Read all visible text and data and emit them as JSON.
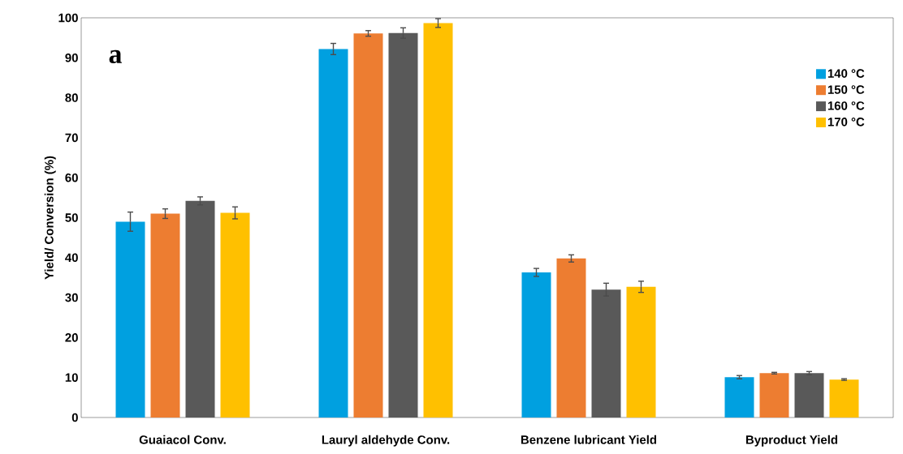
{
  "chart_data": {
    "type": "bar",
    "ylabel": "Yield/ Conversion (%)",
    "categories": [
      "Guaiacol Conv.",
      "Lauryl aldehyde Conv.",
      "Benzene lubricant Yield",
      "Byproduct Yield"
    ],
    "series": [
      {
        "name": "140 °C",
        "color": "#00a0e0",
        "values": [
          49.0,
          92.2,
          36.3,
          10.1
        ],
        "errors": [
          2.4,
          1.4,
          1.0,
          0.4
        ]
      },
      {
        "name": "150 °C",
        "color": "#ed7d31",
        "values": [
          51.0,
          96.1,
          39.8,
          11.1
        ],
        "errors": [
          1.2,
          0.7,
          0.9,
          0.2
        ]
      },
      {
        "name": "160 °C",
        "color": "#595959",
        "values": [
          54.2,
          96.2,
          32.0,
          11.1
        ],
        "errors": [
          1.0,
          1.3,
          1.6,
          0.4
        ]
      },
      {
        "name": "170 °C",
        "color": "#ffc000",
        "values": [
          51.2,
          98.7,
          32.7,
          9.5
        ],
        "errors": [
          1.5,
          1.1,
          1.4,
          0.2
        ]
      }
    ],
    "ylim": [
      0,
      100
    ],
    "yticks": [
      0,
      10,
      20,
      30,
      40,
      50,
      60,
      70,
      80,
      90,
      100
    ],
    "annotations": [
      "a"
    ],
    "legend": "top right",
    "grid": false
  }
}
